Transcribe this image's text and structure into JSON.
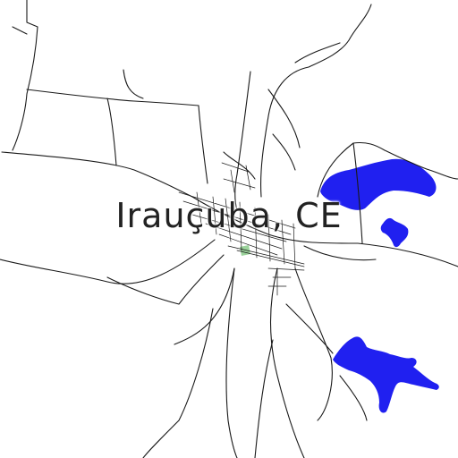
{
  "map": {
    "place_label": "Irauçuba, CE",
    "colors": {
      "background": "#ffffff",
      "road": "#1a1a1a",
      "water": "#2020f0",
      "park": "#9bd39b",
      "label": "#222222"
    }
  }
}
